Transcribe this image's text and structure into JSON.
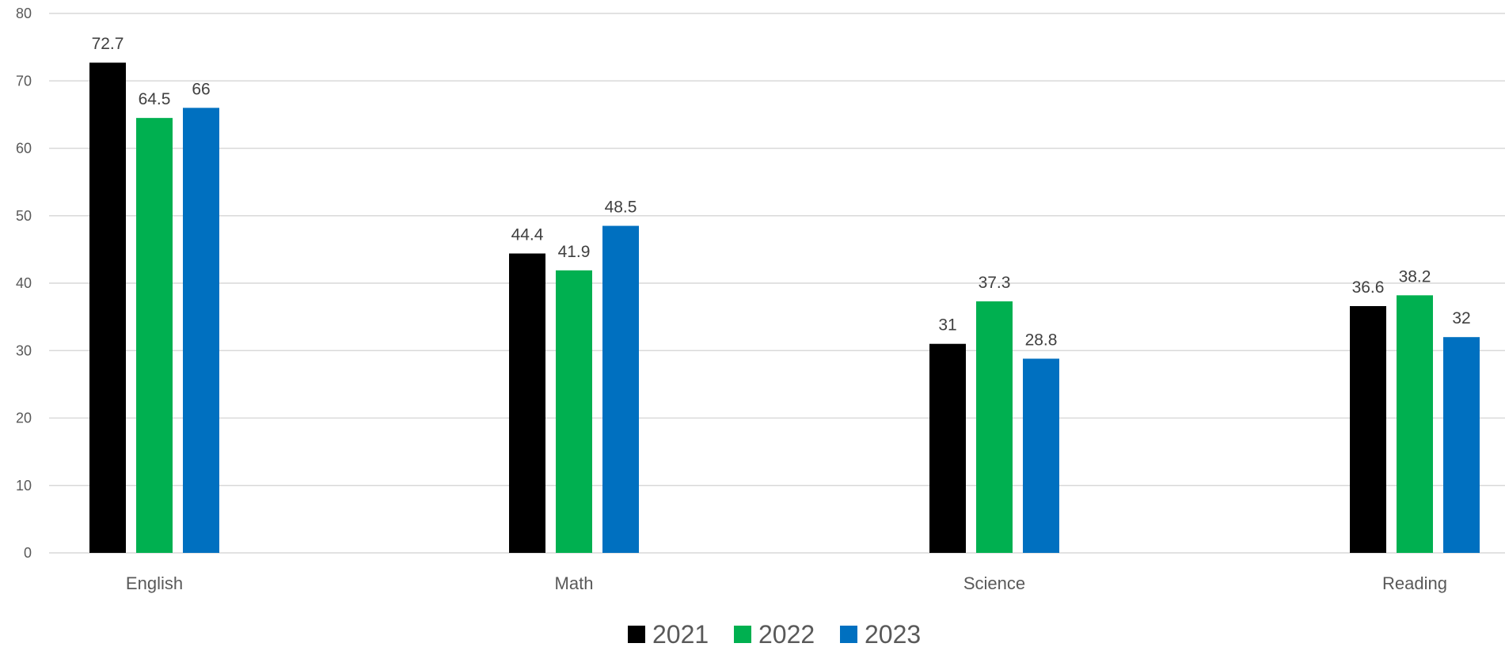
{
  "chart_data": {
    "type": "bar",
    "title": "",
    "xlabel": "",
    "ylabel": "",
    "categories": [
      "English",
      "Math",
      "Science",
      "Reading"
    ],
    "series": [
      {
        "name": "2021",
        "color": "#000000",
        "values": [
          72.7,
          44.4,
          31,
          36.6
        ],
        "labels": [
          "72.7",
          "44.4",
          "31",
          "36.6"
        ]
      },
      {
        "name": "2022",
        "color": "#00b050",
        "values": [
          64.5,
          41.9,
          37.3,
          38.2
        ],
        "labels": [
          "64.5",
          "41.9",
          "37.3",
          "38.2"
        ]
      },
      {
        "name": "2023",
        "color": "#0070c0",
        "values": [
          66,
          48.5,
          28.8,
          32
        ],
        "labels": [
          "66",
          "48.5",
          "28.8",
          "32"
        ]
      }
    ],
    "ylim": [
      0,
      80
    ],
    "yticks": [
      0,
      10,
      20,
      30,
      40,
      50,
      60,
      70,
      80
    ],
    "grid": true,
    "legend_position": "bottom"
  }
}
